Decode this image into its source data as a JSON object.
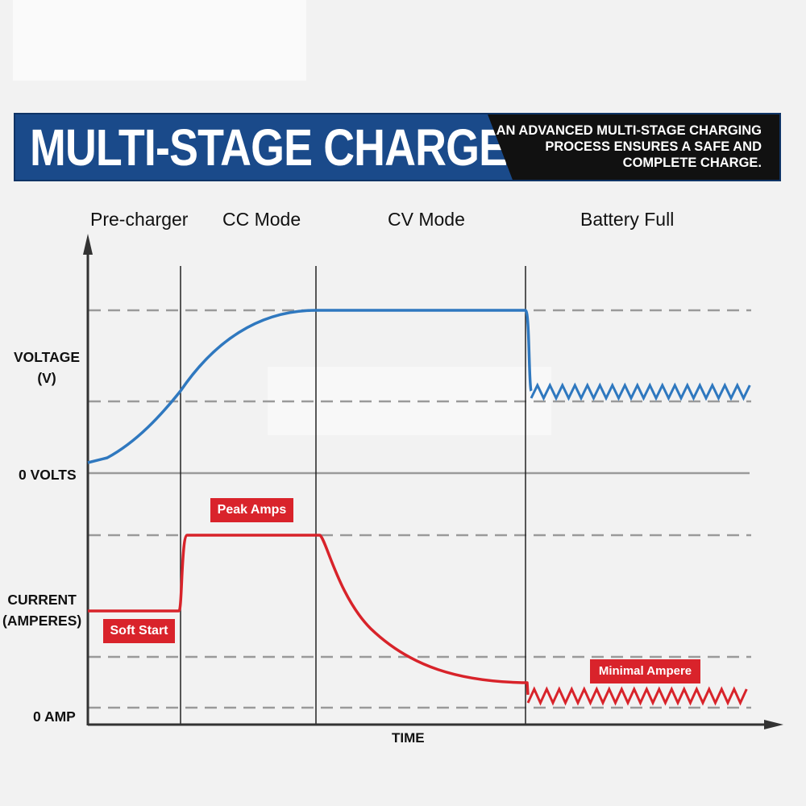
{
  "banner": {
    "title": "MULTI-STAGE CHARGE",
    "subtitle_lines": [
      "AN ADVANCED MULTI-STAGE CHARGING",
      "PROCESS ENSURES A SAFE AND",
      "COMPLETE CHARGE."
    ]
  },
  "phases": {
    "pre_charger": "Pre-charger",
    "cc_mode": "CC Mode",
    "cv_mode": "CV Mode",
    "battery_full": "Battery Full"
  },
  "axis": {
    "voltage_line1": "VOLTAGE",
    "voltage_line2": "(V)",
    "zero_volts": "0 VOLTS",
    "current_line1": "CURRENT",
    "current_line2": "(AMPERES)",
    "zero_amp": "0 AMP",
    "time": "TIME"
  },
  "labels": {
    "soft_start": "Soft Start",
    "peak_amps": "Peak Amps",
    "minimal_ampere": "Minimal Ampere"
  },
  "colors": {
    "voltage_curve": "#2f78bf",
    "current_curve": "#d8232a",
    "banner_blue": "#1a4a8a",
    "tag_red": "#d9232b"
  }
}
